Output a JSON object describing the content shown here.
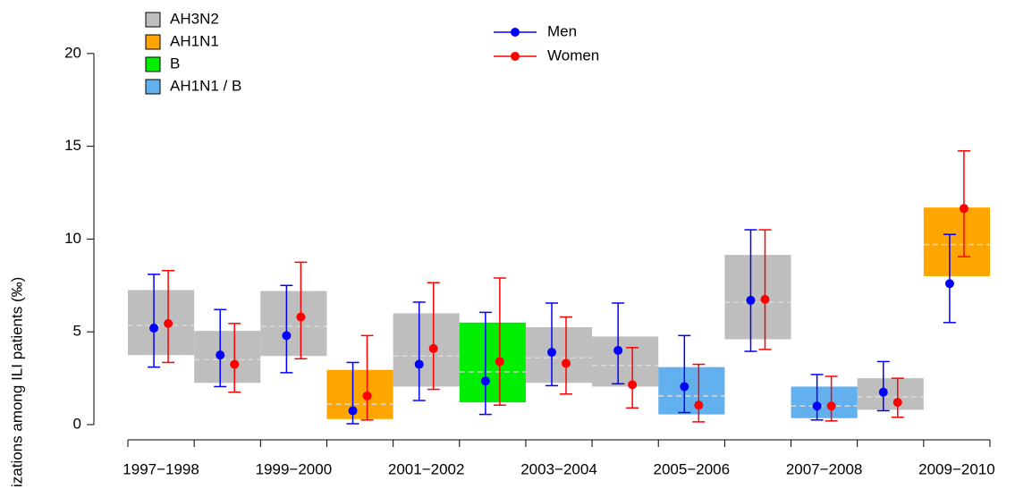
{
  "chart_data": {
    "type": "interval",
    "y_label": "izations among ILI patients (‰)",
    "categories": [
      "1997−1998",
      null,
      "1999−2000",
      null,
      "2001−2002",
      null,
      "2003−2004",
      null,
      "2005−2006",
      null,
      "2007−2008",
      null,
      "2009−2010"
    ],
    "ylim": [
      0,
      22.4
    ],
    "yticks": [
      0,
      5,
      10,
      15,
      20
    ],
    "boxes": [
      {
        "name": "AH3N2",
        "color": "#bebebe",
        "low": [
          3.75,
          2.25,
          3.7,
          null,
          2.05,
          null,
          2.25,
          2.05,
          null,
          4.6,
          null,
          0.8,
          null
        ],
        "high": [
          7.25,
          5.05,
          7.2,
          null,
          6.0,
          null,
          5.25,
          4.75,
          null,
          9.15,
          null,
          2.5,
          null
        ],
        "mid": [
          5.35,
          3.5,
          5.3,
          null,
          3.7,
          null,
          3.6,
          3.2,
          null,
          6.6,
          null,
          1.5,
          null
        ]
      },
      {
        "name": "AH1N1",
        "color": "#ffa500",
        "low": [
          null,
          null,
          null,
          0.3,
          null,
          null,
          null,
          null,
          null,
          null,
          null,
          null,
          8.0
        ],
        "high": [
          null,
          null,
          null,
          2.95,
          null,
          null,
          null,
          null,
          null,
          null,
          null,
          null,
          11.7
        ],
        "mid": [
          null,
          null,
          null,
          1.1,
          null,
          null,
          null,
          null,
          null,
          null,
          null,
          null,
          9.7
        ]
      },
      {
        "name": "B",
        "color": "#00ee00",
        "low": [
          null,
          null,
          null,
          null,
          null,
          1.2,
          null,
          null,
          null,
          null,
          null,
          null,
          null
        ],
        "high": [
          null,
          null,
          null,
          null,
          null,
          5.5,
          null,
          null,
          null,
          null,
          null,
          null,
          null
        ],
        "mid": [
          null,
          null,
          null,
          null,
          null,
          2.85,
          null,
          null,
          null,
          null,
          null,
          null,
          null
        ]
      },
      {
        "name": "AH1N1 / B",
        "color": "#63b0ef",
        "low": [
          null,
          null,
          null,
          null,
          null,
          null,
          null,
          null,
          0.55,
          null,
          0.35,
          null,
          null
        ],
        "high": [
          null,
          null,
          null,
          null,
          null,
          null,
          null,
          null,
          3.1,
          null,
          2.05,
          null,
          null
        ],
        "mid": [
          null,
          null,
          null,
          null,
          null,
          null,
          null,
          null,
          1.55,
          null,
          1.0,
          null,
          null
        ]
      }
    ],
    "series": [
      {
        "name": "Men",
        "color": "#0000ff",
        "values": [
          5.2,
          3.75,
          4.8,
          0.75,
          3.25,
          2.35,
          3.9,
          4.0,
          2.05,
          6.7,
          1.0,
          1.75,
          7.6
        ],
        "lower": [
          3.1,
          2.05,
          2.8,
          0.05,
          1.3,
          0.55,
          2.1,
          2.2,
          0.65,
          3.95,
          0.25,
          0.75,
          5.5
        ],
        "upper": [
          8.1,
          6.2,
          7.5,
          3.35,
          6.6,
          6.05,
          6.55,
          6.55,
          4.8,
          10.5,
          2.7,
          3.4,
          10.25
        ]
      },
      {
        "name": "Women",
        "color": "#ff0000",
        "values": [
          5.45,
          3.25,
          5.8,
          1.55,
          4.1,
          3.4,
          3.3,
          2.15,
          1.05,
          6.75,
          1.0,
          1.2,
          11.65
        ],
        "lower": [
          3.35,
          1.75,
          3.55,
          0.25,
          1.9,
          1.05,
          1.65,
          0.9,
          0.15,
          4.05,
          0.2,
          0.4,
          9.05
        ],
        "upper": [
          8.3,
          5.45,
          8.75,
          4.8,
          7.65,
          7.9,
          5.8,
          4.15,
          3.25,
          10.5,
          2.6,
          2.5,
          14.75
        ]
      }
    ]
  }
}
